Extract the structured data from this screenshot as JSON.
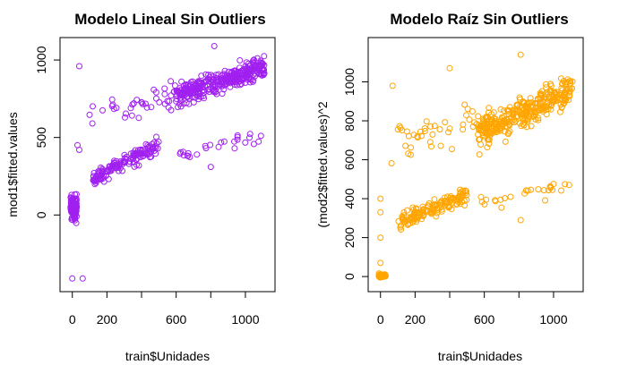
{
  "chart_data": [
    {
      "type": "scatter",
      "title": "Modelo Lineal Sin Outliers",
      "xlabel": "train$Unidades",
      "ylabel": "mod1$fitted.values",
      "xlim": [
        -40,
        1140
      ],
      "ylim": [
        -460,
        1110
      ],
      "x_ticks": [
        0,
        200,
        600,
        1000
      ],
      "x_tick_labels": [
        "0",
        "200",
        "600",
        "1000"
      ],
      "y_ticks": [
        0,
        500,
        1000
      ],
      "y_tick_labels": [
        "0",
        "500",
        "1000"
      ],
      "marker": "open-circle",
      "color": "#a020f0",
      "grid": false,
      "point_groups": [
        {
          "name": "cluster-near-zero",
          "x_range": [
            -10,
            25
          ],
          "y_center": 50,
          "y_spread": 90,
          "count": 95
        },
        {
          "name": "low-arm",
          "x_range": [
            120,
            500
          ],
          "y_start": 235,
          "y_end": 450,
          "y_spread": 45,
          "count": 150
        },
        {
          "name": "upper-band",
          "x_range": [
            600,
            1110
          ],
          "y_start": 770,
          "y_end": 950,
          "y_spread": 70,
          "count": 340
        },
        {
          "name": "mid-arm",
          "x_range": [
            60,
            600
          ],
          "y_start": 640,
          "y_end": 780,
          "y_spread": 90,
          "count": 40
        },
        {
          "name": "scattered-mid",
          "x_range": [
            580,
            1080
          ],
          "y_start": 380,
          "y_end": 510,
          "y_spread": 40,
          "count": 25
        }
      ],
      "notable_points": [
        {
          "x": 0,
          "y": -410
        },
        {
          "x": 60,
          "y": -410
        },
        {
          "x": 40,
          "y": 960
        },
        {
          "x": 30,
          "y": 450
        },
        {
          "x": 40,
          "y": 420
        },
        {
          "x": 820,
          "y": 1090
        },
        {
          "x": 1090,
          "y": 510
        },
        {
          "x": 800,
          "y": 310
        }
      ]
    },
    {
      "type": "scatter",
      "title": "Modelo Raíz Sin Outliers",
      "xlabel": "train$Unidades",
      "ylabel": "(mod2$fitted.values)^2",
      "xlim": [
        -40,
        1140
      ],
      "ylim": [
        -50,
        1200
      ],
      "x_ticks": [
        0,
        200,
        600,
        1000
      ],
      "x_tick_labels": [
        "0",
        "200",
        "600",
        "1000"
      ],
      "y_ticks": [
        0,
        200,
        400,
        600,
        800,
        1000
      ],
      "y_tick_labels": [
        "0",
        "200",
        "400",
        "600",
        "800",
        "1000"
      ],
      "marker": "open-circle",
      "color": "#ffa500",
      "grid": false,
      "point_groups": [
        {
          "name": "cluster-near-zero",
          "x_range": [
            -10,
            30
          ],
          "y_center": 5,
          "y_spread": 8,
          "count": 60
        },
        {
          "name": "low-arm",
          "x_range": [
            100,
            500
          ],
          "y_start": 280,
          "y_end": 420,
          "y_spread": 40,
          "count": 150
        },
        {
          "name": "upper-band",
          "x_range": [
            560,
            1110
          ],
          "y_start": 740,
          "y_end": 960,
          "y_spread": 80,
          "count": 340
        },
        {
          "name": "mid-arm",
          "x_range": [
            40,
            560
          ],
          "y_start": 700,
          "y_end": 800,
          "y_spread": 100,
          "count": 40
        },
        {
          "name": "scattered-mid",
          "x_range": [
            540,
            1080
          ],
          "y_start": 380,
          "y_end": 470,
          "y_spread": 40,
          "count": 25
        }
      ],
      "notable_points": [
        {
          "x": 0,
          "y": 400
        },
        {
          "x": 0,
          "y": 330
        },
        {
          "x": 0,
          "y": 200
        },
        {
          "x": 0,
          "y": 70
        },
        {
          "x": 70,
          "y": 980
        },
        {
          "x": 810,
          "y": 1140
        },
        {
          "x": 1090,
          "y": 470
        },
        {
          "x": 810,
          "y": 290
        },
        {
          "x": 400,
          "y": 1070
        }
      ]
    }
  ]
}
